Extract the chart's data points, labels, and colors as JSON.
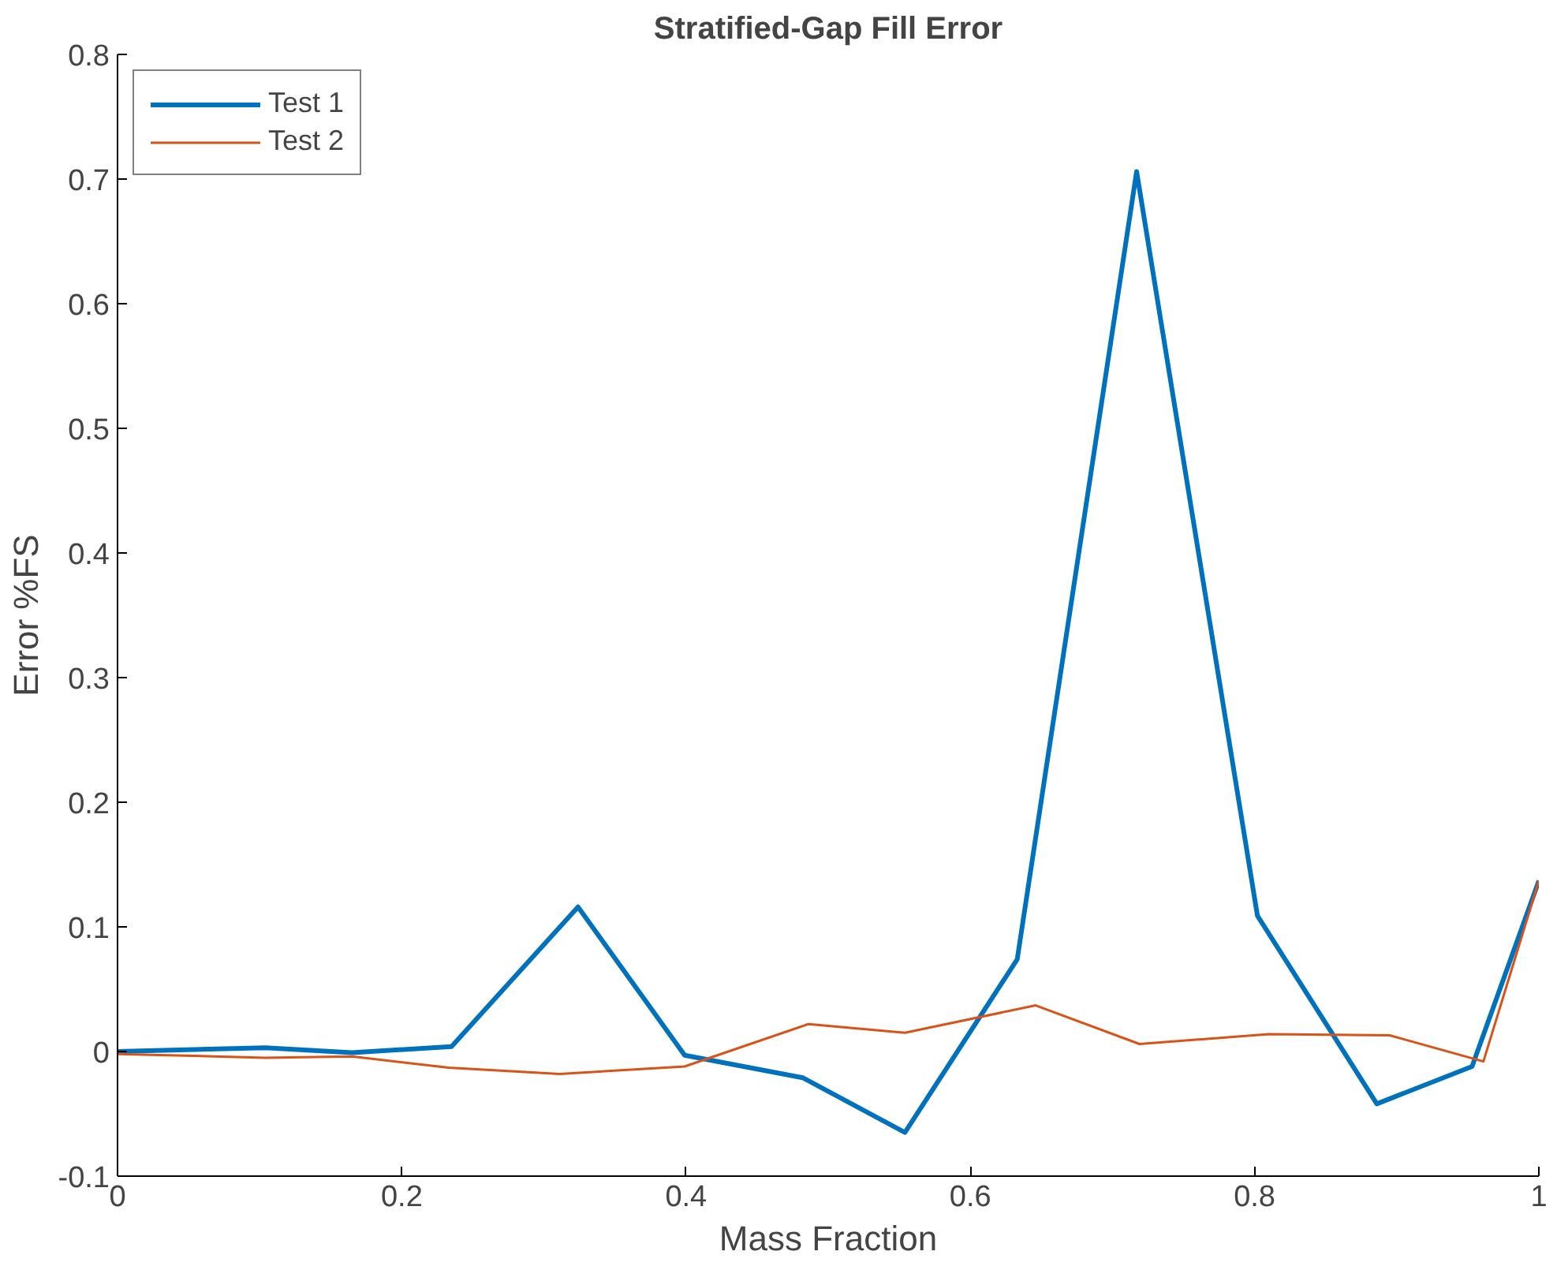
{
  "chart_data": {
    "type": "line",
    "title": "Stratified-Gap Fill Error",
    "xlabel": "Mass Fraction",
    "ylabel": "Error %FS",
    "xlim": [
      0,
      1
    ],
    "xticks": [
      0,
      0.2,
      0.4,
      0.6,
      0.8,
      1
    ],
    "ylim": [
      -0.1,
      0.8
    ],
    "yticks": [
      -0.1,
      0,
      0.1,
      0.2,
      0.3,
      0.4,
      0.5,
      0.6,
      0.7,
      0.8
    ],
    "grid": false,
    "legend": "top left",
    "marker": "none",
    "line_style": "solid",
    "series": [
      {
        "name": "Test 1",
        "color": "#0072bd",
        "x": [
          0,
          0.104,
          0.165,
          0.235,
          0.324,
          0.399,
          0.482,
          0.554,
          0.633,
          0.717,
          0.802,
          0.886,
          0.953,
          1
        ],
        "values": [
          0,
          0.003,
          -0.001,
          0.004,
          0.116,
          -0.003,
          -0.021,
          -0.065,
          0.074,
          0.706,
          0.109,
          -0.042,
          -0.012,
          0.137
        ]
      },
      {
        "name": "Test 2",
        "color": "#d95319",
        "x": [
          0,
          0.104,
          0.165,
          0.233,
          0.311,
          0.399,
          0.486,
          0.554,
          0.646,
          0.719,
          0.81,
          0.895,
          0.961,
          1
        ],
        "values": [
          -0.002,
          -0.005,
          -0.004,
          -0.013,
          -0.018,
          -0.012,
          0.022,
          0.015,
          0.037,
          0.006,
          0.014,
          0.013,
          -0.008,
          0.137
        ]
      }
    ]
  }
}
